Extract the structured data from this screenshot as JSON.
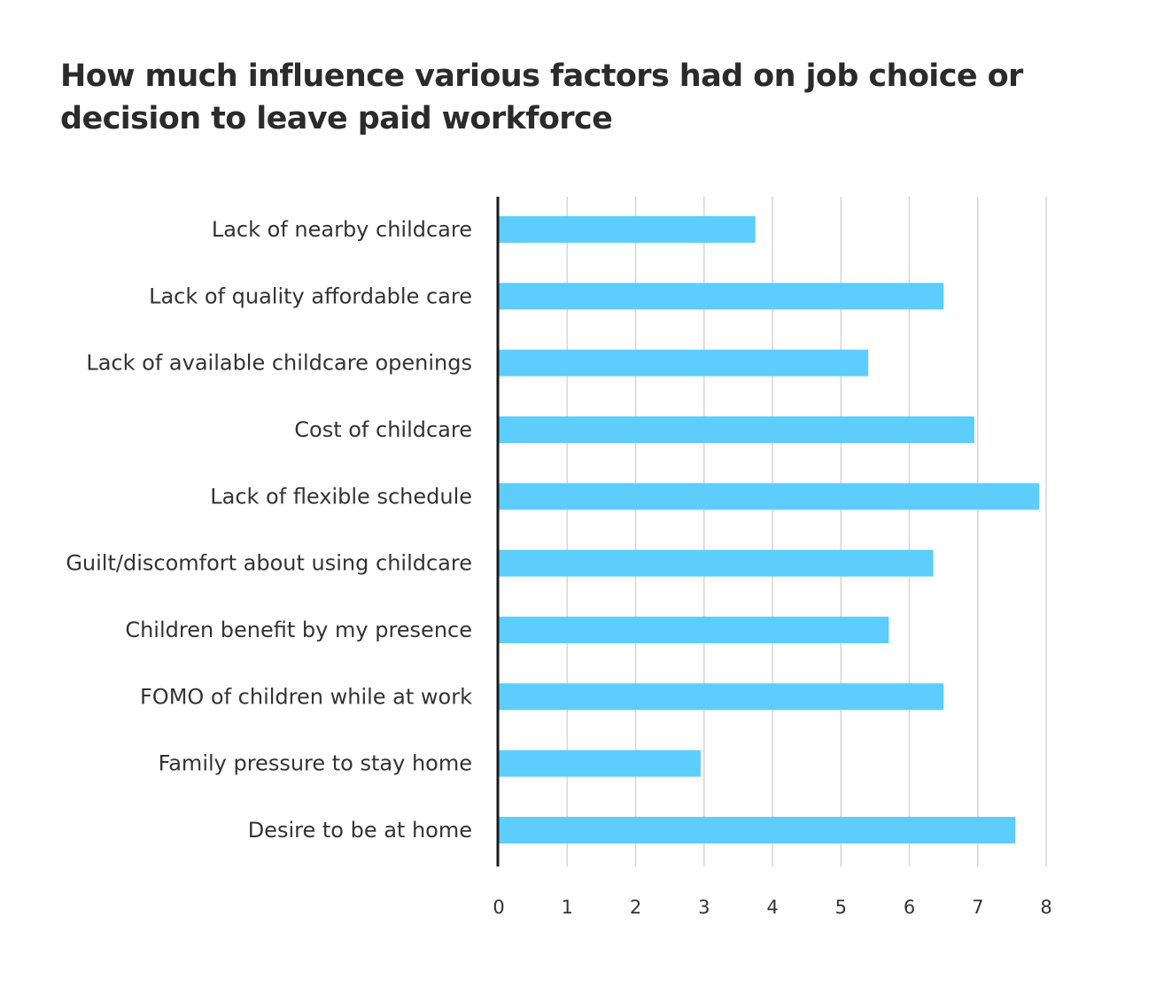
{
  "chart_data": {
    "type": "bar",
    "orientation": "horizontal",
    "title": "How much influence various factors had on job choice or decision to leave paid workforce",
    "categories": [
      "Lack of nearby childcare",
      "Lack of quality affordable care",
      "Lack of available childcare openings",
      "Cost of childcare",
      "Lack of flexible schedule",
      "Guilt/discomfort about using childcare",
      "Children benefit by my presence",
      "FOMO of children while at work",
      "Family pressure to stay home",
      "Desire to be at home"
    ],
    "values": [
      3.75,
      6.5,
      5.4,
      6.95,
      7.9,
      6.35,
      5.7,
      6.5,
      2.95,
      7.55
    ],
    "xlim": [
      0,
      8
    ],
    "xticks": [
      "0",
      "1",
      "2",
      "3",
      "4",
      "5",
      "6",
      "7",
      "8"
    ],
    "grid": true,
    "legend": "none",
    "colors": {
      "bar": "#5ccdfc",
      "grid": "#d6d6d6",
      "axis": "#1a1a1a",
      "text": "#333333"
    }
  }
}
